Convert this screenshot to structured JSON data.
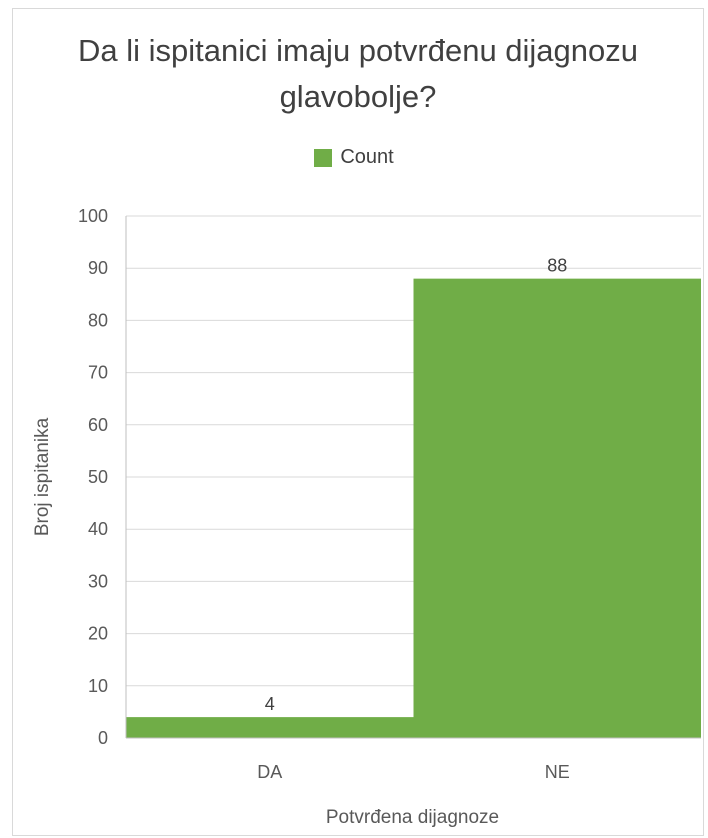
{
  "chart_data": {
    "type": "bar",
    "title": "Da li ispitanici imaju potvrđenu dijagnozu glavobolje?",
    "title_lines": [
      "Da li ispitanici imaju potvrđenu dijagnozu",
      "glavobolje?"
    ],
    "categories": [
      "DA",
      "NE"
    ],
    "series": [
      {
        "name": "Count",
        "values": [
          4,
          88
        ],
        "color": "#70ad47"
      }
    ],
    "data_labels": [
      "4",
      "88"
    ],
    "xlabel": "Potvrđena dijagnoze",
    "ylabel": "Broj ispitanika",
    "ylim": [
      0,
      100
    ],
    "yticks": [
      0,
      10,
      20,
      30,
      40,
      50,
      60,
      70,
      80,
      90,
      100
    ],
    "grid": true,
    "legend": "top"
  }
}
